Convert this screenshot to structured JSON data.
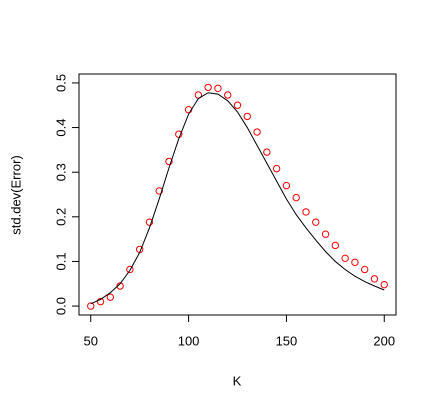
{
  "chart_data": {
    "type": "scatter",
    "xlabel": "K",
    "ylabel": "std.dev(Error)",
    "x": [
      50,
      55,
      60,
      65,
      70,
      75,
      80,
      85,
      90,
      95,
      100,
      105,
      110,
      115,
      120,
      125,
      130,
      135,
      140,
      145,
      150,
      155,
      160,
      165,
      170,
      175,
      180,
      185,
      190,
      195,
      200
    ],
    "series": [
      {
        "color": "#ff0000",
        "marker": "circle",
        "values": [
          0.0,
          0.01,
          0.02,
          0.045,
          0.082,
          0.127,
          0.188,
          0.258,
          0.324,
          0.385,
          0.44,
          0.473,
          0.49,
          0.488,
          0.473,
          0.45,
          0.425,
          0.39,
          0.345,
          0.308,
          0.27,
          0.243,
          0.211,
          0.188,
          0.161,
          0.136,
          0.107,
          0.098,
          0.082,
          0.061,
          0.048
        ]
      },
      {
        "color": "#000000",
        "style": "line",
        "values": [
          0.005,
          0.015,
          0.03,
          0.05,
          0.08,
          0.12,
          0.175,
          0.24,
          0.31,
          0.375,
          0.43,
          0.465,
          0.478,
          0.475,
          0.46,
          0.435,
          0.4,
          0.36,
          0.32,
          0.28,
          0.24,
          0.205,
          0.175,
          0.148,
          0.122,
          0.1,
          0.082,
          0.067,
          0.055,
          0.045,
          0.036
        ]
      }
    ],
    "xlim": [
      44,
      206
    ],
    "ylim": [
      -0.02,
      0.52
    ],
    "xticks": [
      50,
      100,
      150,
      200
    ],
    "yticks": [
      {
        "value": 0,
        "label": "0.0"
      },
      0.1,
      0.2,
      0.3,
      0.4,
      0.5
    ]
  }
}
